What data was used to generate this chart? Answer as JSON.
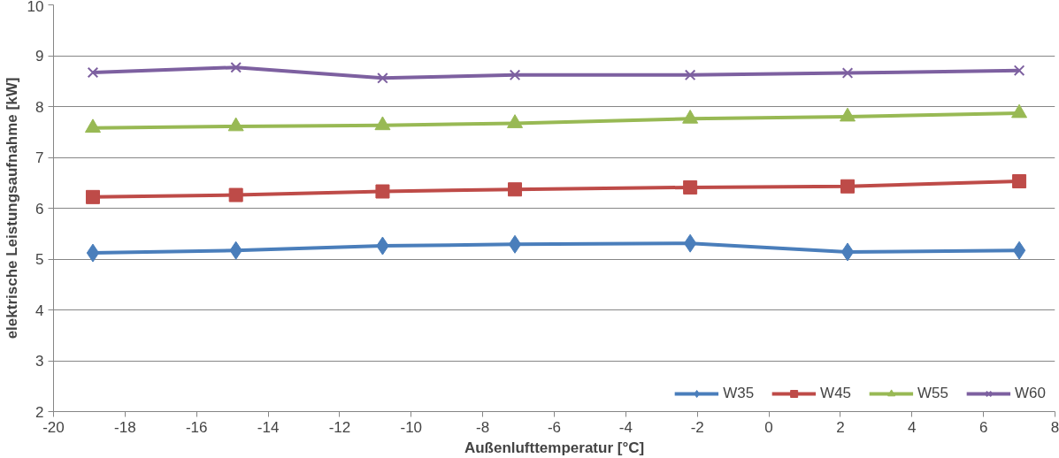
{
  "chart_data": {
    "type": "line",
    "xlabel": "Außenlufttemperatur [°C]",
    "ylabel": "elektrische Leistungsaufnahme [kW]",
    "x": [
      -18.9,
      -14.9,
      -10.8,
      -7.1,
      -2.2,
      2.2,
      7.0
    ],
    "series": [
      {
        "name": "W35",
        "color": "#4a7ebb",
        "marker": "diamond",
        "values": [
          5.12,
          5.17,
          5.26,
          5.29,
          5.31,
          5.14,
          5.17
        ]
      },
      {
        "name": "W45",
        "color": "#be4b48",
        "marker": "square",
        "values": [
          6.22,
          6.26,
          6.33,
          6.37,
          6.41,
          6.43,
          6.53
        ]
      },
      {
        "name": "W55",
        "color": "#98b954",
        "marker": "triangle",
        "values": [
          7.58,
          7.61,
          7.63,
          7.67,
          7.76,
          7.8,
          7.87
        ]
      },
      {
        "name": "W60",
        "color": "#7d60a0",
        "marker": "cross",
        "values": [
          8.67,
          8.77,
          8.56,
          8.62,
          8.62,
          8.66,
          8.71
        ]
      }
    ],
    "xlim": [
      -20,
      8
    ],
    "xticks": [
      -20,
      -18,
      -16,
      -14,
      -12,
      -10,
      -8,
      -6,
      -4,
      -2,
      0,
      2,
      4,
      6,
      8
    ],
    "ylim": [
      2,
      10
    ],
    "yticks": [
      2,
      3,
      4,
      5,
      6,
      7,
      8,
      9,
      10
    ],
    "grid": "y",
    "legend": "bottom right"
  }
}
